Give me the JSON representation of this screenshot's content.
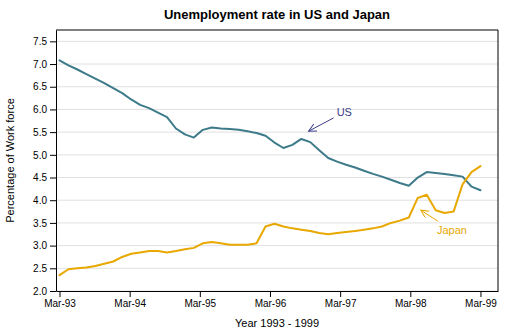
{
  "chart_data": {
    "type": "line",
    "title": "Unemployment rate in US and Japan",
    "xlabel": "Year 1993 - 1999",
    "ylabel": "Percentage of Work force",
    "x": [
      0,
      0.12766,
      0.255319,
      0.382979,
      0.510638,
      0.638298,
      0.765957,
      0.893617,
      1.021277,
      1.148936,
      1.276596,
      1.404255,
      1.531915,
      1.659574,
      1.787234,
      1.914894,
      2.042553,
      2.170213,
      2.297872,
      2.425532,
      2.553191,
      2.680851,
      2.808511,
      2.93617,
      3.06383,
      3.191489,
      3.319149,
      3.446809,
      3.574468,
      3.702128,
      3.829787,
      3.957447,
      4.085106,
      4.212766,
      4.340426,
      4.468085,
      4.595745,
      4.723404,
      4.851064,
      4.978723,
      5.106383,
      5.234043,
      5.361702,
      5.489362,
      5.617021,
      5.744681,
      5.87234,
      6
    ],
    "xlim": [
      -0.05,
      6.25
    ],
    "xticks": [
      {
        "value": 0,
        "label": "Mar-93"
      },
      {
        "value": 1,
        "label": "Mar-94"
      },
      {
        "value": 2,
        "label": "Mar-95"
      },
      {
        "value": 3,
        "label": "Mar-96"
      },
      {
        "value": 4,
        "label": "Mar-97"
      },
      {
        "value": 5,
        "label": "Mar-98"
      },
      {
        "value": 6,
        "label": "Mar-99"
      }
    ],
    "ylim": [
      2.0,
      7.75
    ],
    "yticks": [
      {
        "value": 2,
        "label": "2.0"
      },
      2.5,
      {
        "value": 3,
        "label": "3.0"
      },
      3.5,
      {
        "value": 4,
        "label": "4.0"
      },
      4.5,
      {
        "value": 5,
        "label": "5.0"
      },
      5.5,
      {
        "value": 6,
        "label": "6.0"
      },
      6.5,
      {
        "value": 7,
        "label": "7.0"
      },
      7.5
    ],
    "grid": true,
    "series": [
      {
        "color": "#3d7a8a",
        "values": [
          7.08,
          6.97,
          6.88,
          6.78,
          6.68,
          6.58,
          6.47,
          6.36,
          6.22,
          6.1,
          6.03,
          5.93,
          5.83,
          5.58,
          5.45,
          5.38,
          5.55,
          5.6,
          5.58,
          5.57,
          5.55,
          5.52,
          5.48,
          5.42,
          5.27,
          5.15,
          5.22,
          5.35,
          5.28,
          5.1,
          4.93,
          4.85,
          4.78,
          4.72,
          4.65,
          4.58,
          4.52,
          4.45,
          4.38,
          4.32,
          4.5,
          4.62,
          4.6,
          4.58,
          4.55,
          4.52,
          4.3,
          4.22
        ]
      },
      {
        "color": "#e8a800",
        "values": [
          2.35,
          2.48,
          2.5,
          2.52,
          2.55,
          2.6,
          2.65,
          2.75,
          2.82,
          2.85,
          2.88,
          2.88,
          2.85,
          2.88,
          2.92,
          2.95,
          3.05,
          3.08,
          3.05,
          3.02,
          3.02,
          3.02,
          3.05,
          3.42,
          3.48,
          3.42,
          3.38,
          3.35,
          3.32,
          3.28,
          3.25,
          3.28,
          3.3,
          3.32,
          3.35,
          3.38,
          3.42,
          3.5,
          3.55,
          3.62,
          4.05,
          4.12,
          3.78,
          3.72,
          3.75,
          4.35,
          4.62,
          4.75
        ]
      }
    ],
    "annotations": [
      {
        "text": "US",
        "x": 3.95,
        "y": 5.85,
        "arrow_x": 3.55,
        "arrow_y": 5.52,
        "color": "#3d3d8a"
      },
      {
        "text": "Japan",
        "x": 5.38,
        "y": 3.25,
        "arrow_x": 5.15,
        "arrow_y": 3.78,
        "color": "#e8a800"
      }
    ]
  }
}
